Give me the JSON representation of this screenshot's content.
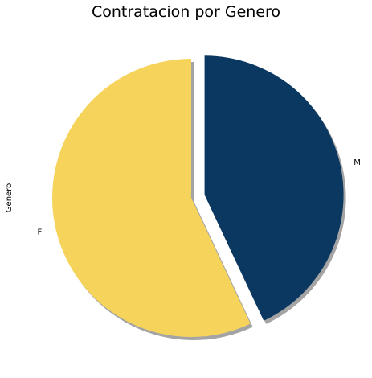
{
  "chart_data": {
    "type": "pie",
    "title": "Contratacion por Genero",
    "ylabel": "Genero",
    "slices": [
      {
        "label": "M",
        "value": 43,
        "color": "#0b3861",
        "explode": true
      },
      {
        "label": "F",
        "value": 57,
        "color": "#f6d45c",
        "explode": false
      }
    ],
    "start_angle_deg": 90,
    "shadow": true
  }
}
